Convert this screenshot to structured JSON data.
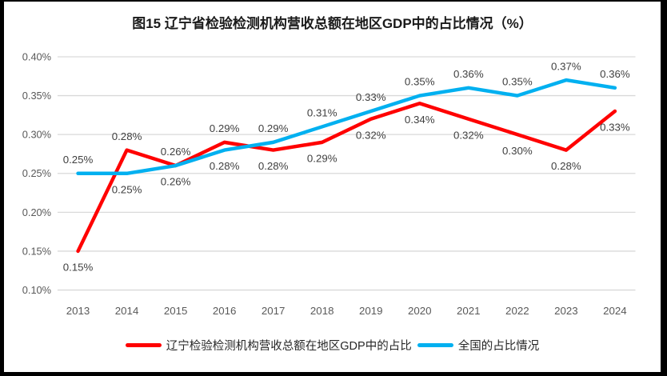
{
  "chart_data": {
    "type": "line",
    "title": "图15 辽宁省检验检测机构营收总额在地区GDP中的占比情况（%）",
    "categories": [
      "2013",
      "2014",
      "2015",
      "2016",
      "2017",
      "2018",
      "2019",
      "2020",
      "2021",
      "2022",
      "2023",
      "2024"
    ],
    "y_axis": {
      "min": 0.1,
      "max": 0.4,
      "step": 0.05,
      "tick_labels": [
        "0.10%",
        "0.15%",
        "0.20%",
        "0.25%",
        "0.30%",
        "0.35%",
        "0.40%"
      ],
      "unit": "percent"
    },
    "grid": "horizontal",
    "legend_position": "bottom",
    "series": [
      {
        "name": "辽宁检验检测机构营收总额在地区GDP中的占比",
        "color": "#FF0000",
        "values": [
          0.15,
          0.28,
          0.26,
          0.29,
          0.28,
          0.29,
          0.32,
          0.34,
          0.32,
          0.3,
          0.28,
          0.33
        ],
        "labels": [
          "0.15%",
          "0.28%",
          "0.26%",
          "0.29%",
          "0.28%",
          "0.29%",
          "0.32%",
          "0.34%",
          "0.32%",
          "0.30%",
          "0.28%",
          "0.33%"
        ],
        "label_positions": [
          "below",
          "above",
          "above",
          "above",
          "below",
          "below",
          "below",
          "below",
          "below",
          "below",
          "below",
          "below"
        ]
      },
      {
        "name": "全国的占比情况",
        "color": "#00B0F0",
        "values": [
          0.25,
          0.25,
          0.26,
          0.28,
          0.29,
          0.31,
          0.33,
          0.35,
          0.36,
          0.35,
          0.37,
          0.36
        ],
        "labels": [
          "0.25%",
          "0.25%",
          "0.26%",
          "0.28%",
          "0.29%",
          "0.31%",
          "0.33%",
          "0.35%",
          "0.36%",
          "0.35%",
          "0.37%",
          "0.36%"
        ],
        "label_positions": [
          "above",
          "below",
          "below",
          "below",
          "above",
          "above",
          "above",
          "above",
          "above",
          "above",
          "above",
          "above"
        ]
      }
    ],
    "colors": {
      "gridline": "#D9D9D9",
      "axis_text": "#595959",
      "label_text": "#404040",
      "title_text": "#1A1A1A"
    }
  }
}
